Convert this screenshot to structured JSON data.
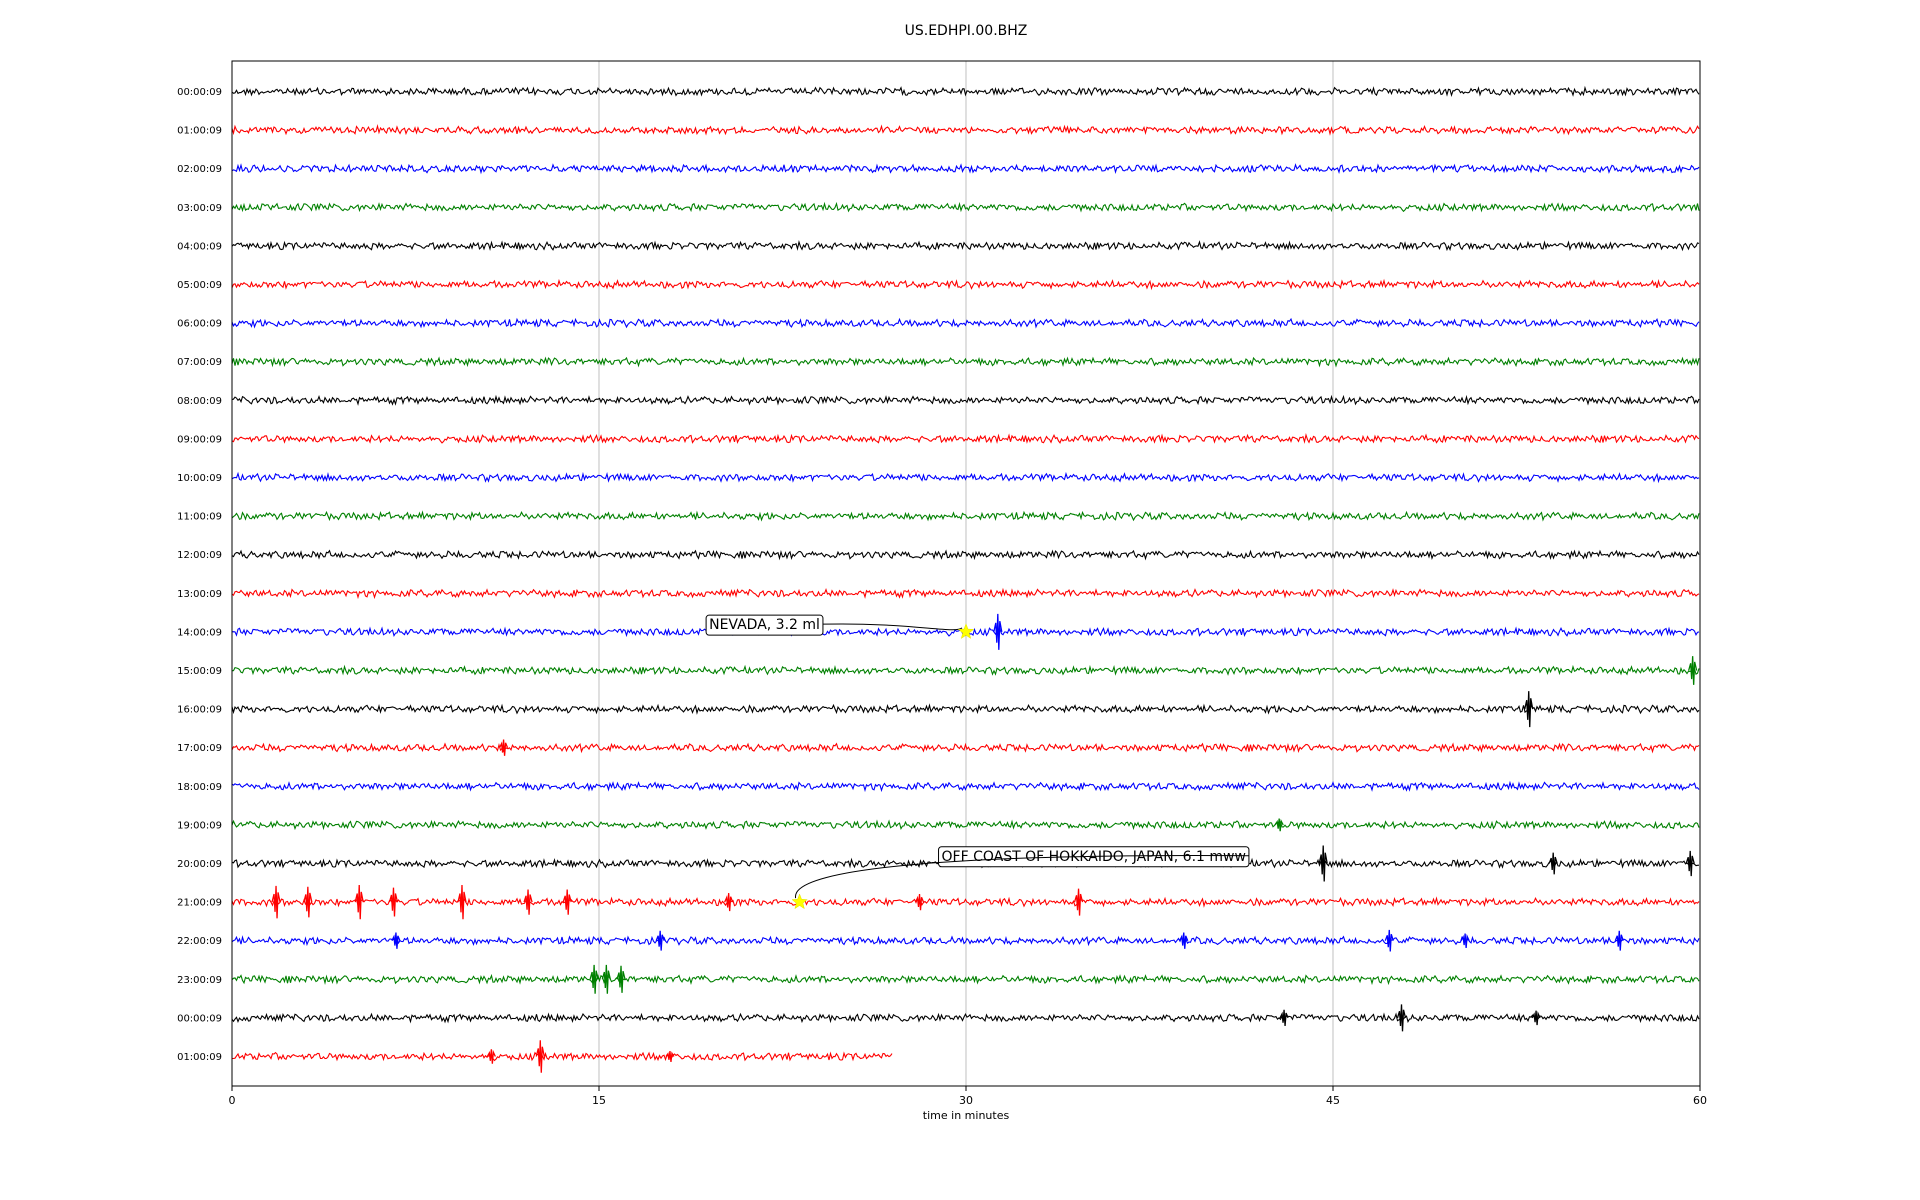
{
  "chart_data": {
    "type": "line",
    "subtype": "helicorder",
    "title": "US.EDHPI.00.BHZ",
    "xlabel": "time in minutes",
    "ylabel": "",
    "xlim": [
      0,
      60
    ],
    "xticks": [
      0,
      15,
      30,
      45,
      60
    ],
    "xtick_labels": [
      "0",
      "15",
      "30",
      "45",
      "60"
    ],
    "grid": "vertical at major x ticks",
    "row_labels": [
      "00:00:09",
      "01:00:09",
      "02:00:09",
      "03:00:09",
      "04:00:09",
      "05:00:09",
      "06:00:09",
      "07:00:09",
      "08:00:09",
      "09:00:09",
      "10:00:09",
      "11:00:09",
      "12:00:09",
      "13:00:09",
      "14:00:09",
      "15:00:09",
      "16:00:09",
      "17:00:09",
      "18:00:09",
      "19:00:09",
      "20:00:09",
      "21:00:09",
      "22:00:09",
      "23:00:09",
      "00:00:09",
      "01:00:09"
    ],
    "trace_colors": [
      "#000000",
      "#ff0000",
      "#0000ff",
      "#008000"
    ],
    "last_row_end_minute": 27,
    "spikes": [
      {
        "row": 14,
        "minute": 31.3,
        "amp": 1.0
      },
      {
        "row": 15,
        "minute": 59.7,
        "amp": 0.8
      },
      {
        "row": 16,
        "minute": 53.0,
        "amp": 1.0
      },
      {
        "row": 17,
        "minute": 11.1,
        "amp": 0.45
      },
      {
        "row": 19,
        "minute": 42.8,
        "amp": 0.35
      },
      {
        "row": 20,
        "minute": 44.6,
        "amp": 1.0
      },
      {
        "row": 20,
        "minute": 54.0,
        "amp": 0.6
      },
      {
        "row": 20,
        "minute": 59.6,
        "amp": 0.7
      },
      {
        "row": 21,
        "minute": 1.8,
        "amp": 0.9
      },
      {
        "row": 21,
        "minute": 3.1,
        "amp": 0.85
      },
      {
        "row": 21,
        "minute": 5.2,
        "amp": 0.95
      },
      {
        "row": 21,
        "minute": 6.6,
        "amp": 0.8
      },
      {
        "row": 21,
        "minute": 9.4,
        "amp": 0.95
      },
      {
        "row": 21,
        "minute": 12.1,
        "amp": 0.7
      },
      {
        "row": 21,
        "minute": 13.7,
        "amp": 0.7
      },
      {
        "row": 21,
        "minute": 20.3,
        "amp": 0.5
      },
      {
        "row": 21,
        "minute": 28.1,
        "amp": 0.45
      },
      {
        "row": 21,
        "minute": 34.6,
        "amp": 0.75
      },
      {
        "row": 22,
        "minute": 6.7,
        "amp": 0.45
      },
      {
        "row": 22,
        "minute": 17.5,
        "amp": 0.55
      },
      {
        "row": 22,
        "minute": 38.9,
        "amp": 0.45
      },
      {
        "row": 22,
        "minute": 47.3,
        "amp": 0.6
      },
      {
        "row": 22,
        "minute": 50.4,
        "amp": 0.4
      },
      {
        "row": 22,
        "minute": 56.7,
        "amp": 0.55
      },
      {
        "row": 23,
        "minute": 14.8,
        "amp": 0.8
      },
      {
        "row": 23,
        "minute": 15.3,
        "amp": 0.8
      },
      {
        "row": 23,
        "minute": 15.9,
        "amp": 0.75
      },
      {
        "row": 24,
        "minute": 43.0,
        "amp": 0.45
      },
      {
        "row": 24,
        "minute": 47.8,
        "amp": 0.75
      },
      {
        "row": 24,
        "minute": 53.3,
        "amp": 0.4
      },
      {
        "row": 25,
        "minute": 10.6,
        "amp": 0.4
      },
      {
        "row": 25,
        "minute": 12.6,
        "amp": 0.9
      },
      {
        "row": 25,
        "minute": 17.9,
        "amp": 0.3
      }
    ],
    "events": [
      {
        "label": "NEVADA, 3.2 ml",
        "row": 14,
        "minute": 30.0,
        "label_row": 13.8,
        "label_minute": 19.5
      },
      {
        "label": "OFF COAST OF HOKKAIDO, JAPAN, 6.1 mww",
        "row": 21,
        "minute": 23.2,
        "label_row": 19.8,
        "label_minute": 29.0
      }
    ],
    "marker_color": "#ffff00"
  }
}
